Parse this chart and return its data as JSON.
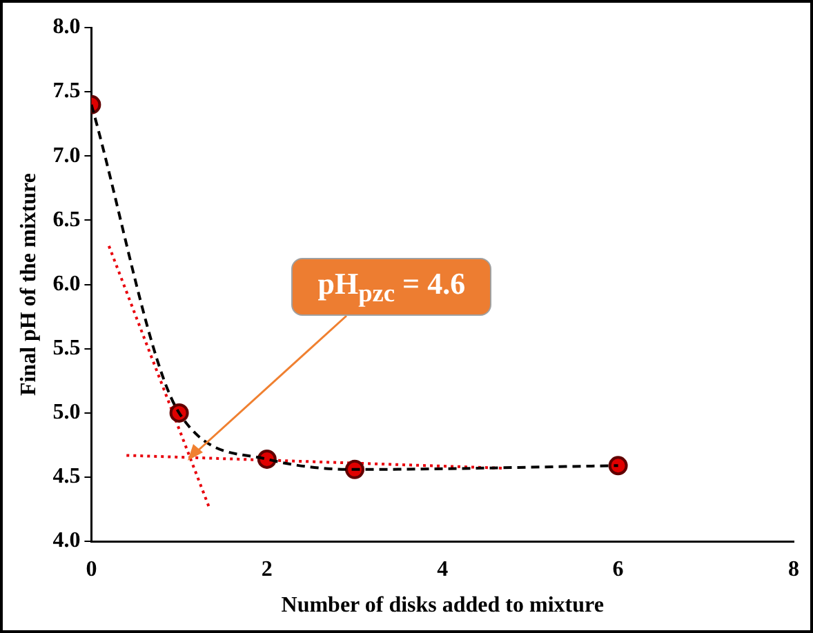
{
  "chart_data": {
    "type": "scatter",
    "xlabel": "Number of disks added to mixture",
    "ylabel": "Final pH of the mixture",
    "x": [
      0,
      1,
      2,
      3,
      6
    ],
    "series": [
      {
        "type": "line",
        "color": "#000000",
        "line_style": "dashed",
        "marker": "none",
        "values": [
          7.4,
          5.0,
          4.64,
          4.56,
          4.59
        ]
      },
      {
        "color": "#e00000",
        "marker": "circle",
        "values": [
          7.4,
          5.0,
          4.64,
          4.56,
          4.59
        ]
      },
      {
        "type": "line",
        "color": "#e8000b",
        "line_style": "dotted",
        "marker": "none",
        "x": [
          0.2,
          1.35
        ],
        "values": [
          6.3,
          4.25
        ]
      },
      {
        "type": "line",
        "color": "#e8000b",
        "line_style": "dotted",
        "marker": "none",
        "x": [
          0.4,
          4.7
        ],
        "values": [
          4.67,
          4.57
        ]
      }
    ],
    "xlim": [
      0,
      8
    ],
    "xticks": [
      0,
      2,
      4,
      6,
      8
    ],
    "ylim": [
      4,
      8
    ],
    "yticks": [
      {
        "value": 4,
        "label": "4.0"
      },
      {
        "value": 4.5,
        "label": "4.5"
      },
      {
        "value": 5,
        "label": "5.0"
      },
      {
        "value": 5.5,
        "label": "5.5"
      },
      {
        "value": 6,
        "label": "6.0"
      },
      {
        "value": 6.5,
        "label": "6.5"
      },
      {
        "value": 7,
        "label": "7.0"
      },
      {
        "value": 7.5,
        "label": "7.5"
      },
      {
        "value": 8,
        "label": "8.0"
      }
    ],
    "grid": false,
    "legend": false,
    "annotations": [
      {
        "text": "pH$_{pzc}$ = 4.6",
        "x": 1.1,
        "y": 4.65
      }
    ]
  }
}
